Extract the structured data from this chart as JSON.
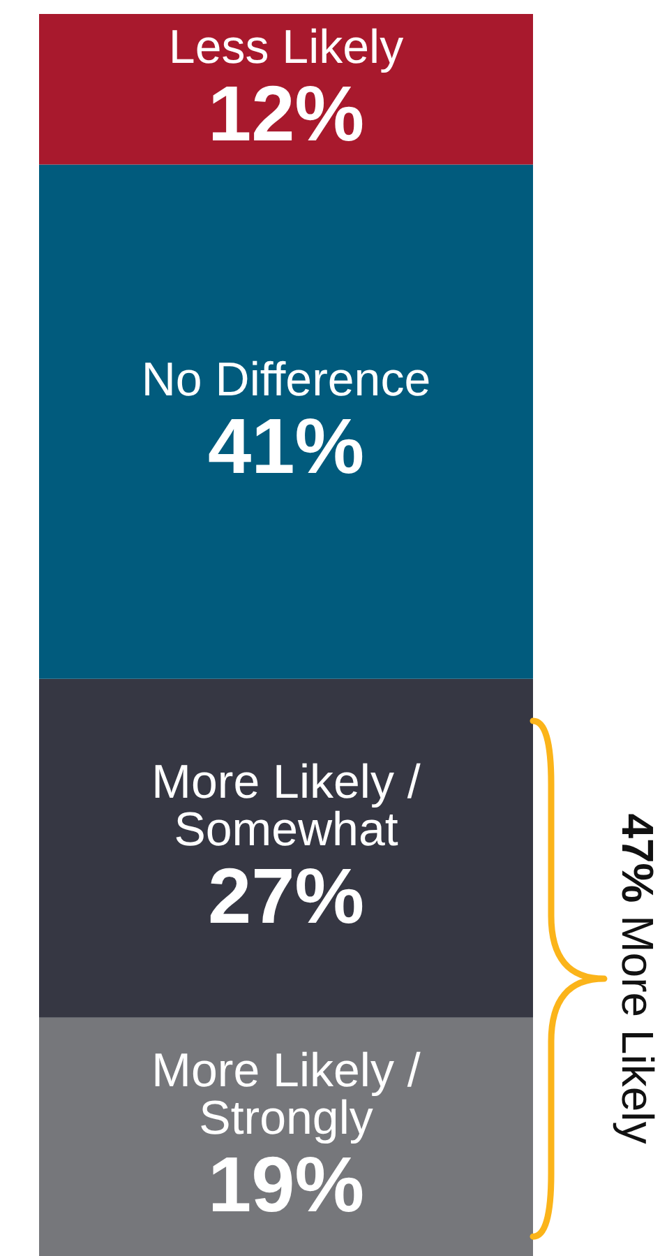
{
  "chart_data": {
    "type": "bar",
    "stacked": true,
    "categories": [
      null
    ],
    "series": [
      {
        "name": "More Likely / Strongly",
        "color": "#76777b",
        "values": [
          19
        ],
        "value_labels": [
          "19%"
        ]
      },
      {
        "name": "More Likely / Somewhat",
        "color": "#363743",
        "values": [
          27
        ],
        "value_labels": [
          "27%"
        ]
      },
      {
        "name": "No Difference",
        "color": "#015b7d",
        "values": [
          41
        ],
        "value_labels": [
          "41%"
        ]
      },
      {
        "name": "Less Likely",
        "color": "#a8192d",
        "values": [
          12
        ],
        "value_labels": [
          "12%"
        ]
      }
    ],
    "annotations": [
      "47% More Likely"
    ],
    "tick_labels": false
  }
}
